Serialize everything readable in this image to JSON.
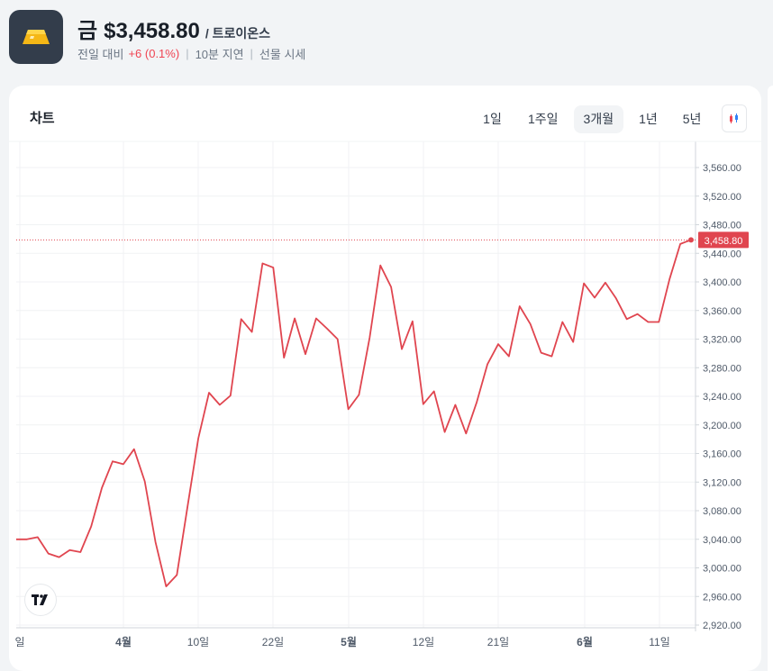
{
  "header": {
    "asset_name": "금",
    "price": "$3,458.80",
    "source": "/ 트로이온스",
    "change_label": "전일 대비",
    "change_value": "+6 (0.1%)",
    "delay": "10분 지연",
    "feed": "선물 시세",
    "logo_icon": "gold-bar-icon"
  },
  "card": {
    "title": "차트",
    "tabs": [
      {
        "label": "1일"
      },
      {
        "label": "1주일"
      },
      {
        "label": "3개월",
        "active": true
      },
      {
        "label": "1년"
      },
      {
        "label": "5년"
      }
    ],
    "chart_type_icon": "candlestick-icon",
    "watermark_icon": "tradingview-logo-icon"
  },
  "colors": {
    "line": "#e0454f",
    "grid": "#f0f2f4",
    "axis_text": "#4e5968",
    "last_price_bg": "#e0454f"
  },
  "chart_data": {
    "type": "line",
    "ylim": [
      2920,
      3580
    ],
    "y_ticks": [
      "3,560.00",
      "3,520.00",
      "3,480.00",
      "3,440.00",
      "3,400.00",
      "3,360.00",
      "3,320.00",
      "3,280.00",
      "3,240.00",
      "3,200.00",
      "3,160.00",
      "3,120.00",
      "3,080.00",
      "3,040.00",
      "3,000.00",
      "2,960.00",
      "2,920.00"
    ],
    "x_ticks": [
      {
        "label": "일",
        "bold": false
      },
      {
        "label": "4월",
        "bold": true
      },
      {
        "label": "10일",
        "bold": false
      },
      {
        "label": "22일",
        "bold": false
      },
      {
        "label": "5월",
        "bold": true
      },
      {
        "label": "12일",
        "bold": false
      },
      {
        "label": "21일",
        "bold": false
      },
      {
        "label": "6월",
        "bold": true
      },
      {
        "label": "11일",
        "bold": false
      }
    ],
    "last_price": 3458.8,
    "last_price_label": "3,458.80",
    "values": [
      3040,
      3040,
      3043,
      3020,
      3015,
      3025,
      3022,
      3058,
      3112,
      3149,
      3145,
      3166,
      3121,
      3036,
      2974,
      2990,
      3086,
      3181,
      3245,
      3228,
      3241,
      3348,
      3330,
      3426,
      3420,
      3294,
      3349,
      3299,
      3349,
      3335,
      3320,
      3222,
      3242,
      3322,
      3423,
      3393,
      3306,
      3345,
      3229,
      3247,
      3190,
      3228,
      3188,
      3232,
      3285,
      3313,
      3296,
      3366,
      3341,
      3301,
      3296,
      3344,
      3316,
      3398,
      3378,
      3399,
      3377,
      3348,
      3355,
      3344,
      3344,
      3404,
      3453,
      3458.8
    ]
  }
}
